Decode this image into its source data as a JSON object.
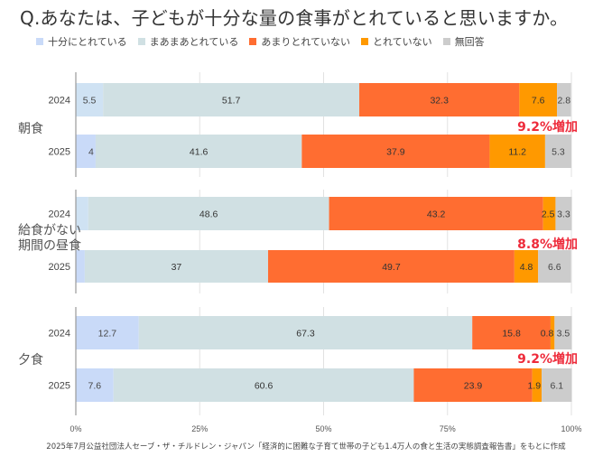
{
  "title": "Q.あなたは、子どもが十分な量の食事がとれていると思いますか。",
  "source": "2025年7月公益社団法人セーブ・ザ・チルドレン・ジャパン「経済的に困難な子育て世帯の子ども1.4万人の食と生活の実態調査報告書」をもとに作成",
  "chart_data": {
    "type": "bar",
    "orientation": "horizontal",
    "stacked": "100%",
    "title": "Q.あなたは、子どもが十分な量の食事がとれていると思いますか。",
    "xlabel": "",
    "ylabel": "",
    "xlim": [
      0,
      100
    ],
    "x_ticks": [
      "0%",
      "25%",
      "50%",
      "75%",
      "100%"
    ],
    "x_tick_values": [
      0,
      25,
      50,
      75,
      100
    ],
    "grid": true,
    "legend_position": "top",
    "series": [
      {
        "name": "十分にとれている",
        "color": "#c9daf8",
        "color_alt": "#cfe2f3"
      },
      {
        "name": "まあまあとれている",
        "color": "#d0e0e3"
      },
      {
        "name": "あまりとれていない",
        "color": "#ff6d31"
      },
      {
        "name": "とれていない",
        "color": "#ff9900"
      },
      {
        "name": "無回答",
        "color": "#cccccc"
      }
    ],
    "groups": [
      {
        "name": "朝食",
        "name_lines": [
          "朝食"
        ],
        "bars": [
          {
            "year": "2024",
            "values": [
              5.5,
              51.7,
              32.3,
              7.6,
              2.8
            ]
          },
          {
            "year": "2025",
            "values": [
              4,
              41.6,
              37.9,
              11.2,
              5.3
            ]
          }
        ],
        "annotation": "9.2%増加"
      },
      {
        "name": "給食がない期間の昼食",
        "name_lines": [
          "給食がない",
          "期間の昼食"
        ],
        "bars": [
          {
            "year": "2024",
            "values": [
              2.5,
              48.6,
              43.2,
              2.5,
              3.3
            ]
          },
          {
            "year": "2025",
            "values": [
              1.8,
              37,
              49.7,
              4.8,
              6.6
            ]
          }
        ],
        "annotation": "8.8%増加"
      },
      {
        "name": "夕食",
        "name_lines": [
          "夕食"
        ],
        "bars": [
          {
            "year": "2024",
            "values": [
              12.7,
              67.3,
              15.8,
              0.8,
              3.5
            ]
          },
          {
            "year": "2025",
            "values": [
              7.6,
              60.6,
              23.9,
              1.9,
              6.1
            ]
          }
        ],
        "annotation": "9.2%増加"
      }
    ],
    "annotation_color": "#ee2b3b"
  }
}
